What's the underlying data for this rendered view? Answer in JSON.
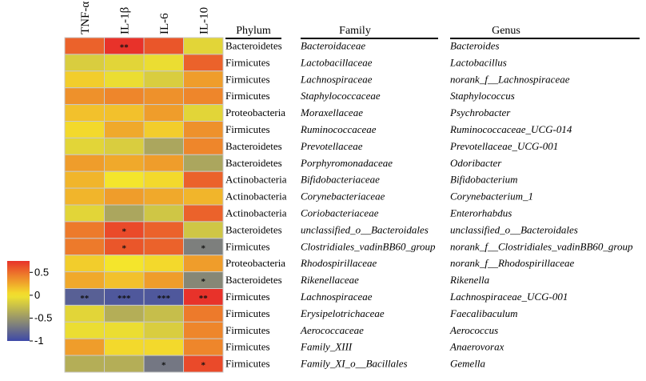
{
  "chart_data": {
    "type": "heatmap",
    "columns": [
      "TNF-α",
      "IL-1β",
      "IL-6",
      "IL-10"
    ],
    "table_headers": [
      "Phylum",
      "Family",
      "Genus"
    ],
    "rows": [
      {
        "phylum": "Bacteroidetes",
        "family": "Bacteroidaceae",
        "genus": "Bacteroides",
        "values": [
          0.55,
          0.75,
          0.6,
          -0.1
        ],
        "stars": [
          "",
          "**",
          "",
          ""
        ]
      },
      {
        "phylum": "Firmicutes",
        "family": "Lactobacillaceae",
        "genus": "Lactobacillus",
        "values": [
          -0.15,
          -0.1,
          -0.05,
          0.55
        ],
        "stars": [
          "",
          "",
          "",
          ""
        ]
      },
      {
        "phylum": "Firmicutes",
        "family": "Lachnospiraceae",
        "genus": "norank_f__Lachnospiraceae",
        "values": [
          0.1,
          -0.05,
          -0.15,
          0.3
        ],
        "stars": [
          "",
          "",
          "",
          ""
        ]
      },
      {
        "phylum": "Firmicutes",
        "family": "Staphylococcaceae",
        "genus": "Staphylococcus",
        "values": [
          0.35,
          0.4,
          0.35,
          0.4
        ],
        "stars": [
          "",
          "",
          "",
          ""
        ]
      },
      {
        "phylum": "Proteobacteria",
        "family": "Moraxellaceae",
        "genus": "Psychrobacter",
        "values": [
          0.15,
          0.15,
          0.3,
          -0.1
        ],
        "stars": [
          "",
          "",
          "",
          ""
        ]
      },
      {
        "phylum": "Firmicutes",
        "family": "Ruminococcaceae",
        "genus": "Ruminococcaceae_UCG-014",
        "values": [
          0.05,
          0.25,
          0.1,
          0.35
        ],
        "stars": [
          "",
          "",
          "",
          ""
        ]
      },
      {
        "phylum": "Bacteroidetes",
        "family": "Prevotellaceae",
        "genus": "Prevotellaceae_UCG-001",
        "values": [
          -0.1,
          -0.15,
          -0.4,
          0.4
        ],
        "stars": [
          "",
          "",
          "",
          ""
        ]
      },
      {
        "phylum": "Bacteroidetes",
        "family": "Porphyromonadaceae",
        "genus": "Odoribacter",
        "values": [
          0.3,
          0.25,
          0.3,
          -0.4
        ],
        "stars": [
          "",
          "",
          "",
          ""
        ]
      },
      {
        "phylum": "Actinobacteria",
        "family": "Bifidobacteriaceae",
        "genus": "Bifidobacterium",
        "values": [
          0.2,
          0.0,
          0.05,
          0.55
        ],
        "stars": [
          "",
          "",
          "",
          ""
        ]
      },
      {
        "phylum": "Actinobacteria",
        "family": "Corynebacteriaceae",
        "genus": "Corynebacterium_1",
        "values": [
          0.2,
          0.3,
          0.25,
          0.2
        ],
        "stars": [
          "",
          "",
          "",
          ""
        ]
      },
      {
        "phylum": "Actinobacteria",
        "family": "Coriobacteriaceae",
        "genus": "Enterorhabdus",
        "values": [
          -0.1,
          -0.4,
          -0.2,
          0.55
        ],
        "stars": [
          "",
          "",
          "",
          ""
        ]
      },
      {
        "phylum": "Bacteroidetes",
        "family": "unclassified_o__Bacteroidales",
        "genus": "unclassified_o__Bacteroidales",
        "values": [
          0.45,
          0.65,
          0.55,
          -0.2
        ],
        "stars": [
          "",
          "*",
          "",
          ""
        ]
      },
      {
        "phylum": "Firmicutes",
        "family": "Clostridiales_vadinBB60_group",
        "genus": "norank_f__Clostridiales_vadinBB60_group",
        "values": [
          0.45,
          0.6,
          0.55,
          -0.65
        ],
        "stars": [
          "",
          "*",
          "",
          "*"
        ]
      },
      {
        "phylum": "Proteobacteria",
        "family": "Rhodospirillaceae",
        "genus": "norank_f__Rhodospirillaceae",
        "values": [
          0.1,
          0.0,
          0.05,
          0.3
        ],
        "stars": [
          "",
          "",
          "",
          ""
        ]
      },
      {
        "phylum": "Bacteroidetes",
        "family": "Rikenellaceae",
        "genus": "Rikenella",
        "values": [
          0.25,
          0.15,
          0.3,
          -0.6
        ],
        "stars": [
          "",
          "",
          "",
          "*"
        ]
      },
      {
        "phylum": "Firmicutes",
        "family": "Lachnospiraceae",
        "genus": "Lachnospiraceae_UCG-001",
        "values": [
          -0.85,
          -0.9,
          -0.9,
          0.8
        ],
        "stars": [
          "**",
          "***",
          "***",
          "**"
        ]
      },
      {
        "phylum": "Firmicutes",
        "family": "Erysipelotrichaceae",
        "genus": "Faecalibaculum",
        "values": [
          -0.1,
          -0.35,
          -0.25,
          0.45
        ],
        "stars": [
          "",
          "",
          "",
          ""
        ]
      },
      {
        "phylum": "Firmicutes",
        "family": "Aerococcaceae",
        "genus": "Aerococcus",
        "values": [
          -0.05,
          -0.05,
          -0.15,
          0.4
        ],
        "stars": [
          "",
          "",
          "",
          ""
        ]
      },
      {
        "phylum": "Firmicutes",
        "family": "Family_XIII",
        "genus": "Anaerovorax",
        "values": [
          0.3,
          0.05,
          0.05,
          0.4
        ],
        "stars": [
          "",
          "",
          "",
          ""
        ]
      },
      {
        "phylum": "Firmicutes",
        "family": "Family_XI_o__Bacillales",
        "genus": "Gemella",
        "values": [
          -0.35,
          -0.35,
          -0.7,
          0.65
        ],
        "stars": [
          "",
          "",
          "*",
          "*"
        ]
      }
    ],
    "colorbar": {
      "range": [
        -1,
        0.75
      ],
      "ticks": [
        0.5,
        0,
        -0.5,
        -1
      ],
      "tick_labels": [
        "0.5",
        "0",
        "-0.5",
        "-1"
      ]
    },
    "colors": {
      "high": "#e8322a",
      "mid": "#f4e52c",
      "low": "#3d48a8",
      "grid": "#c8c8c8"
    }
  }
}
